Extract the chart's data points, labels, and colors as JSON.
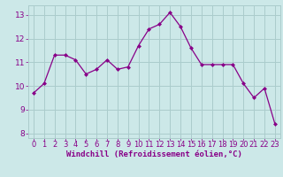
{
  "x": [
    0,
    1,
    2,
    3,
    4,
    5,
    6,
    7,
    8,
    9,
    10,
    11,
    12,
    13,
    14,
    15,
    16,
    17,
    18,
    19,
    20,
    21,
    22,
    23
  ],
  "y": [
    9.7,
    10.1,
    11.3,
    11.3,
    11.1,
    10.5,
    10.7,
    11.1,
    10.7,
    10.8,
    11.7,
    12.4,
    12.6,
    13.1,
    12.5,
    11.6,
    10.9,
    10.9,
    10.9,
    10.9,
    10.1,
    9.5,
    9.9,
    8.4
  ],
  "line_color": "#880088",
  "marker": "D",
  "marker_size": 2,
  "bg_color": "#cce8e8",
  "grid_color": "#aacccc",
  "xlabel": "Windchill (Refroidissement éolien,°C)",
  "xlabel_color": "#880088",
  "tick_color": "#880088",
  "ylim": [
    7.8,
    13.4
  ],
  "xlim": [
    -0.5,
    23.5
  ],
  "yticks": [
    8,
    9,
    10,
    11,
    12,
    13
  ],
  "xticks": [
    0,
    1,
    2,
    3,
    4,
    5,
    6,
    7,
    8,
    9,
    10,
    11,
    12,
    13,
    14,
    15,
    16,
    17,
    18,
    19,
    20,
    21,
    22,
    23
  ],
  "tick_fontsize": 6.0,
  "xlabel_fontsize": 6.5
}
